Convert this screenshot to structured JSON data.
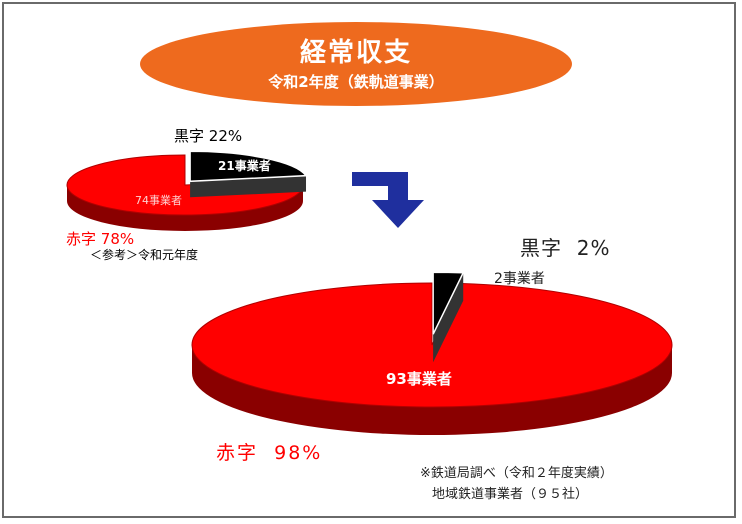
{
  "header": {
    "title": "経常収支",
    "subtitle": "令和2年度（鉄軌道事業）"
  },
  "colors": {
    "header": "#ee6a1e",
    "deficit": "#ff0000",
    "deficit_dark": "#8a0000",
    "surplus": "#000000",
    "arrow": "#1f2f9e"
  },
  "chart_data": [
    {
      "type": "pie",
      "subtitle": "＜参考＞令和元年度",
      "slices": [
        {
          "label": "黒字",
          "percent_text": "22%",
          "percent": 22,
          "count_text": "21事業者",
          "count": 21,
          "color": "#000000"
        },
        {
          "label": "赤字",
          "percent_text": "78%",
          "percent": 78,
          "count_text": "74事業者",
          "count": 74,
          "color": "#ff0000"
        }
      ]
    },
    {
      "type": "pie",
      "slices": [
        {
          "label": "黒字",
          "percent_text": "2%",
          "percent": 2,
          "count_text": "2事業者",
          "count": 2,
          "color": "#000000"
        },
        {
          "label": "赤字",
          "percent_text": "98%",
          "percent": 98,
          "count_text": "93事業者",
          "count": 93,
          "color": "#ff0000"
        }
      ]
    }
  ],
  "source_note": {
    "line1": "※鉄道局調べ（令和２年度実績）",
    "line2": "地域鉄道事業者（９５社）"
  }
}
